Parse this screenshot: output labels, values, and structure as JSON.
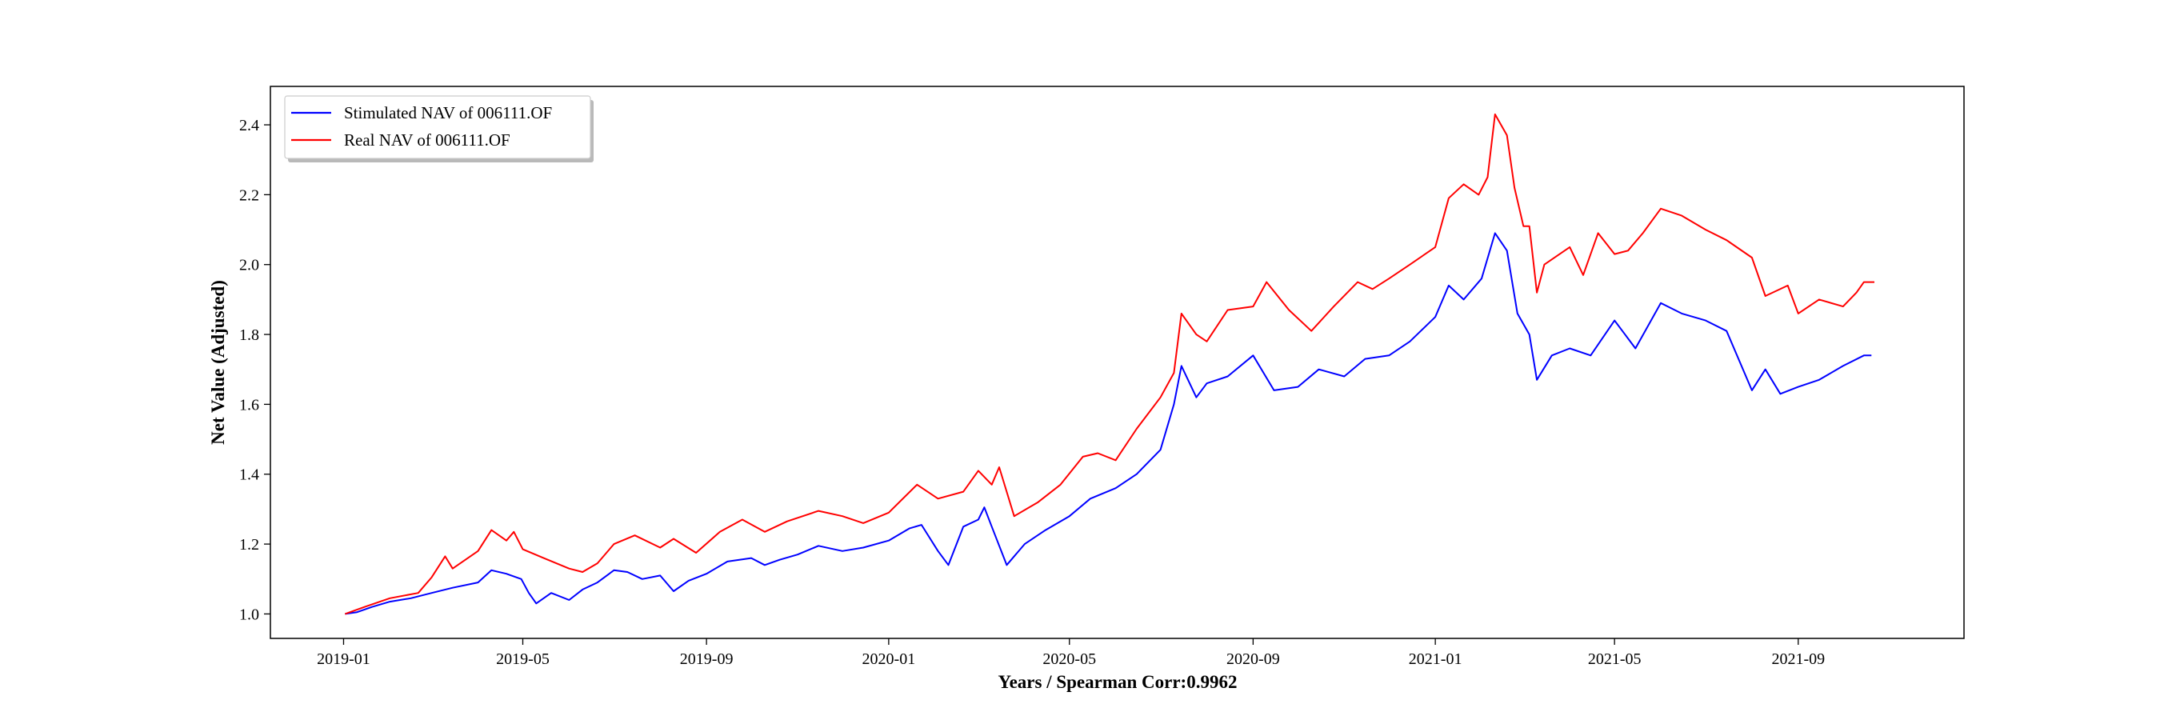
{
  "chart_data": {
    "type": "line",
    "xlabel": "Years / Spearman Corr:0.9962",
    "ylabel": "Net Value (Adjusted)",
    "x_tick_labels": [
      "2019-01",
      "2019-05",
      "2019-09",
      "2020-01",
      "2020-05",
      "2020-09",
      "2021-01",
      "2021-05",
      "2021-09"
    ],
    "y_tick_labels": [
      "1.0",
      "1.2",
      "1.4",
      "1.6",
      "1.8",
      "2.0",
      "2.2",
      "2.4"
    ],
    "y_ticks": [
      1.0,
      1.2,
      1.4,
      1.6,
      1.8,
      2.0,
      2.2,
      2.4
    ],
    "xlim": [
      "2018-11-13",
      "2021-12-21"
    ],
    "ylim": [
      0.93,
      2.51
    ],
    "grid": false,
    "legend_position": "top-left",
    "series": [
      {
        "name": "Stimulated NAV of 006111.OF",
        "color": "#0000ff",
        "points": [
          [
            "2019-01-02",
            1.0
          ],
          [
            "2019-01-10",
            1.005
          ],
          [
            "2019-01-20",
            1.02
          ],
          [
            "2019-02-01",
            1.035
          ],
          [
            "2019-02-15",
            1.045
          ],
          [
            "2019-03-01",
            1.06
          ],
          [
            "2019-03-15",
            1.075
          ],
          [
            "2019-04-01",
            1.09
          ],
          [
            "2019-04-10",
            1.125
          ],
          [
            "2019-04-20",
            1.115
          ],
          [
            "2019-04-30",
            1.1
          ],
          [
            "2019-05-05",
            1.06
          ],
          [
            "2019-05-10",
            1.03
          ],
          [
            "2019-05-20",
            1.06
          ],
          [
            "2019-06-01",
            1.04
          ],
          [
            "2019-06-10",
            1.07
          ],
          [
            "2019-06-20",
            1.09
          ],
          [
            "2019-07-01",
            1.125
          ],
          [
            "2019-07-10",
            1.12
          ],
          [
            "2019-07-20",
            1.1
          ],
          [
            "2019-08-01",
            1.11
          ],
          [
            "2019-08-10",
            1.065
          ],
          [
            "2019-08-20",
            1.095
          ],
          [
            "2019-09-01",
            1.115
          ],
          [
            "2019-09-15",
            1.15
          ],
          [
            "2019-10-01",
            1.16
          ],
          [
            "2019-10-10",
            1.14
          ],
          [
            "2019-10-20",
            1.155
          ],
          [
            "2019-11-01",
            1.17
          ],
          [
            "2019-11-15",
            1.195
          ],
          [
            "2019-12-01",
            1.18
          ],
          [
            "2019-12-15",
            1.19
          ],
          [
            "2020-01-01",
            1.21
          ],
          [
            "2020-01-15",
            1.245
          ],
          [
            "2020-01-23",
            1.255
          ],
          [
            "2020-02-03",
            1.18
          ],
          [
            "2020-02-10",
            1.14
          ],
          [
            "2020-02-20",
            1.25
          ],
          [
            "2020-03-01",
            1.27
          ],
          [
            "2020-03-05",
            1.305
          ],
          [
            "2020-03-10",
            1.25
          ],
          [
            "2020-03-20",
            1.14
          ],
          [
            "2020-04-01",
            1.2
          ],
          [
            "2020-04-15",
            1.24
          ],
          [
            "2020-05-01",
            1.28
          ],
          [
            "2020-05-15",
            1.33
          ],
          [
            "2020-06-01",
            1.36
          ],
          [
            "2020-06-15",
            1.4
          ],
          [
            "2020-07-01",
            1.47
          ],
          [
            "2020-07-10",
            1.6
          ],
          [
            "2020-07-15",
            1.71
          ],
          [
            "2020-07-25",
            1.62
          ],
          [
            "2020-08-01",
            1.66
          ],
          [
            "2020-08-15",
            1.68
          ],
          [
            "2020-09-01",
            1.74
          ],
          [
            "2020-09-15",
            1.64
          ],
          [
            "2020-10-01",
            1.65
          ],
          [
            "2020-10-15",
            1.7
          ],
          [
            "2020-11-01",
            1.68
          ],
          [
            "2020-11-15",
            1.73
          ],
          [
            "2020-12-01",
            1.74
          ],
          [
            "2020-12-15",
            1.78
          ],
          [
            "2021-01-01",
            1.85
          ],
          [
            "2021-01-10",
            1.94
          ],
          [
            "2021-01-20",
            1.9
          ],
          [
            "2021-02-01",
            1.96
          ],
          [
            "2021-02-10",
            2.09
          ],
          [
            "2021-02-18",
            2.04
          ],
          [
            "2021-02-25",
            1.86
          ],
          [
            "2021-03-05",
            1.8
          ],
          [
            "2021-03-10",
            1.67
          ],
          [
            "2021-03-20",
            1.74
          ],
          [
            "2021-04-01",
            1.76
          ],
          [
            "2021-04-15",
            1.74
          ],
          [
            "2021-05-01",
            1.84
          ],
          [
            "2021-05-15",
            1.76
          ],
          [
            "2021-06-01",
            1.89
          ],
          [
            "2021-06-15",
            1.86
          ],
          [
            "2021-07-01",
            1.84
          ],
          [
            "2021-07-15",
            1.81
          ],
          [
            "2021-08-01",
            1.64
          ],
          [
            "2021-08-10",
            1.7
          ],
          [
            "2021-08-20",
            1.63
          ],
          [
            "2021-09-01",
            1.65
          ],
          [
            "2021-09-15",
            1.67
          ],
          [
            "2021-10-01",
            1.71
          ],
          [
            "2021-10-15",
            1.74
          ],
          [
            "2021-10-20",
            1.74
          ]
        ]
      },
      {
        "name": "Real NAV of 006111.OF",
        "color": "#ff0000",
        "points": [
          [
            "2019-01-02",
            1.0
          ],
          [
            "2019-01-15",
            1.02
          ],
          [
            "2019-02-01",
            1.045
          ],
          [
            "2019-02-20",
            1.06
          ],
          [
            "2019-03-01",
            1.105
          ],
          [
            "2019-03-10",
            1.165
          ],
          [
            "2019-03-15",
            1.13
          ],
          [
            "2019-04-01",
            1.18
          ],
          [
            "2019-04-10",
            1.24
          ],
          [
            "2019-04-20",
            1.21
          ],
          [
            "2019-04-25",
            1.235
          ],
          [
            "2019-05-01",
            1.185
          ],
          [
            "2019-05-15",
            1.16
          ],
          [
            "2019-06-01",
            1.13
          ],
          [
            "2019-06-10",
            1.12
          ],
          [
            "2019-06-20",
            1.145
          ],
          [
            "2019-07-01",
            1.2
          ],
          [
            "2019-07-15",
            1.225
          ],
          [
            "2019-08-01",
            1.19
          ],
          [
            "2019-08-10",
            1.215
          ],
          [
            "2019-08-25",
            1.175
          ],
          [
            "2019-09-10",
            1.235
          ],
          [
            "2019-09-25",
            1.27
          ],
          [
            "2019-10-10",
            1.235
          ],
          [
            "2019-10-25",
            1.265
          ],
          [
            "2019-11-15",
            1.295
          ],
          [
            "2019-12-01",
            1.28
          ],
          [
            "2019-12-15",
            1.26
          ],
          [
            "2020-01-01",
            1.29
          ],
          [
            "2020-01-20",
            1.37
          ],
          [
            "2020-02-03",
            1.33
          ],
          [
            "2020-02-20",
            1.35
          ],
          [
            "2020-03-01",
            1.41
          ],
          [
            "2020-03-10",
            1.37
          ],
          [
            "2020-03-15",
            1.42
          ],
          [
            "2020-03-25",
            1.28
          ],
          [
            "2020-04-10",
            1.32
          ],
          [
            "2020-04-25",
            1.37
          ],
          [
            "2020-05-10",
            1.45
          ],
          [
            "2020-05-20",
            1.46
          ],
          [
            "2020-06-01",
            1.44
          ],
          [
            "2020-06-15",
            1.53
          ],
          [
            "2020-07-01",
            1.62
          ],
          [
            "2020-07-10",
            1.69
          ],
          [
            "2020-07-15",
            1.86
          ],
          [
            "2020-07-25",
            1.8
          ],
          [
            "2020-08-01",
            1.78
          ],
          [
            "2020-08-15",
            1.87
          ],
          [
            "2020-09-01",
            1.88
          ],
          [
            "2020-09-10",
            1.95
          ],
          [
            "2020-09-25",
            1.87
          ],
          [
            "2020-10-10",
            1.81
          ],
          [
            "2020-10-25",
            1.88
          ],
          [
            "2020-11-10",
            1.95
          ],
          [
            "2020-11-20",
            1.93
          ],
          [
            "2020-12-01",
            1.96
          ],
          [
            "2020-12-15",
            2.0
          ],
          [
            "2021-01-01",
            2.05
          ],
          [
            "2021-01-10",
            2.19
          ],
          [
            "2021-01-20",
            2.23
          ],
          [
            "2021-01-30",
            2.2
          ],
          [
            "2021-02-05",
            2.25
          ],
          [
            "2021-02-10",
            2.43
          ],
          [
            "2021-02-18",
            2.37
          ],
          [
            "2021-02-23",
            2.22
          ],
          [
            "2021-03-01",
            2.11
          ],
          [
            "2021-03-05",
            2.11
          ],
          [
            "2021-03-10",
            1.92
          ],
          [
            "2021-03-15",
            2.0
          ],
          [
            "2021-04-01",
            2.05
          ],
          [
            "2021-04-10",
            1.97
          ],
          [
            "2021-04-20",
            2.09
          ],
          [
            "2021-05-01",
            2.03
          ],
          [
            "2021-05-10",
            2.04
          ],
          [
            "2021-05-20",
            2.09
          ],
          [
            "2021-06-01",
            2.16
          ],
          [
            "2021-06-15",
            2.14
          ],
          [
            "2021-07-01",
            2.1
          ],
          [
            "2021-07-15",
            2.07
          ],
          [
            "2021-08-01",
            2.02
          ],
          [
            "2021-08-10",
            1.91
          ],
          [
            "2021-08-25",
            1.94
          ],
          [
            "2021-09-01",
            1.86
          ],
          [
            "2021-09-15",
            1.9
          ],
          [
            "2021-10-01",
            1.88
          ],
          [
            "2021-10-10",
            1.92
          ],
          [
            "2021-10-15",
            1.95
          ],
          [
            "2021-10-22",
            1.95
          ]
        ]
      }
    ]
  }
}
